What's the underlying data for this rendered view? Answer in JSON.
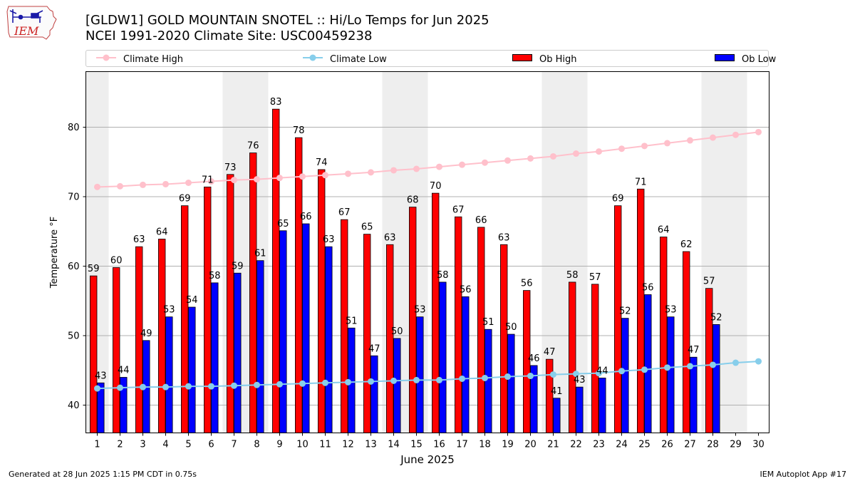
{
  "header": {
    "logo_text": "IEM",
    "title": "[GLDW1] GOLD MOUNTAIN SNOTEL :: Hi/Lo Temps for Jun 2025",
    "subtitle": "NCEI 1991-2020 Climate Site: USC00459238"
  },
  "legend": [
    {
      "label": "Climate High",
      "kind": "line",
      "color": "#ffc0cb"
    },
    {
      "label": "Climate Low",
      "kind": "line",
      "color": "#87ceeb"
    },
    {
      "label": "Ob High",
      "kind": "bar",
      "color": "#ff0000"
    },
    {
      "label": "Ob Low",
      "kind": "bar",
      "color": "#0000ff"
    }
  ],
  "footer": {
    "left": "Generated at 28 Jun 2025 1:15 PM CDT in 0.75s",
    "right": "IEM Autoplot App #17"
  },
  "chart_data": {
    "type": "bar",
    "xlabel": "June 2025",
    "ylabel": "Temperature °F",
    "ylim": [
      36,
      88
    ],
    "yticks": [
      40,
      50,
      60,
      70,
      80
    ],
    "grid": "horizontal",
    "legend_position": "top",
    "categories": [
      "1",
      "2",
      "3",
      "4",
      "5",
      "6",
      "7",
      "8",
      "9",
      "10",
      "11",
      "12",
      "13",
      "14",
      "15",
      "16",
      "17",
      "18",
      "19",
      "20",
      "21",
      "22",
      "23",
      "24",
      "25",
      "26",
      "27",
      "28",
      "29",
      "30"
    ],
    "weekend_shading_days": [
      1,
      7,
      8,
      14,
      15,
      21,
      22,
      28,
      29
    ],
    "shade_color": "#eeeeee",
    "series": [
      {
        "name": "Ob High",
        "type": "bar",
        "color": "#ff0000",
        "values": [
          58.6,
          59.8,
          62.8,
          63.9,
          68.7,
          71.4,
          73.2,
          76.3,
          82.6,
          78.5,
          73.9,
          66.7,
          64.6,
          63.1,
          68.5,
          70.5,
          67.1,
          65.6,
          63.1,
          56.5,
          46.6,
          57.7,
          57.4,
          68.7,
          71.1,
          64.2,
          62.1,
          56.8,
          null,
          null
        ],
        "labels": [
          59,
          60,
          63,
          64,
          69,
          71,
          73,
          76,
          83,
          78,
          74,
          67,
          65,
          63,
          68,
          70,
          67,
          66,
          63,
          56,
          47,
          58,
          57,
          69,
          71,
          64,
          62,
          57,
          null,
          null
        ]
      },
      {
        "name": "Ob Low",
        "type": "bar",
        "color": "#0000ff",
        "values": [
          43.2,
          44.0,
          49.3,
          52.7,
          54.1,
          57.6,
          59.0,
          60.8,
          65.1,
          66.1,
          62.8,
          51.1,
          47.1,
          49.6,
          52.7,
          57.7,
          55.6,
          50.9,
          50.2,
          45.7,
          41.0,
          42.6,
          43.9,
          52.5,
          55.9,
          52.7,
          46.9,
          51.6,
          null,
          null
        ],
        "labels": [
          43,
          44,
          49,
          53,
          54,
          58,
          59,
          61,
          65,
          66,
          63,
          51,
          47,
          50,
          53,
          58,
          56,
          51,
          50,
          46,
          41,
          43,
          44,
          52,
          56,
          53,
          47,
          52,
          null,
          null
        ]
      },
      {
        "name": "Climate High",
        "type": "line",
        "color": "#ffc0cb",
        "values": [
          71.4,
          71.5,
          71.7,
          71.8,
          72.0,
          72.2,
          72.4,
          72.5,
          72.7,
          72.9,
          73.1,
          73.3,
          73.5,
          73.8,
          74.0,
          74.3,
          74.6,
          74.9,
          75.2,
          75.5,
          75.8,
          76.2,
          76.5,
          76.9,
          77.3,
          77.7,
          78.1,
          78.5,
          78.9,
          79.3
        ]
      },
      {
        "name": "Climate Low",
        "type": "line",
        "color": "#87ceeb",
        "values": [
          42.4,
          42.5,
          42.6,
          42.6,
          42.7,
          42.7,
          42.8,
          42.9,
          43.0,
          43.1,
          43.2,
          43.3,
          43.4,
          43.5,
          43.6,
          43.6,
          43.8,
          43.9,
          44.1,
          44.2,
          44.4,
          44.5,
          44.6,
          44.9,
          45.1,
          45.4,
          45.6,
          45.8,
          46.1,
          46.3
        ]
      }
    ]
  }
}
